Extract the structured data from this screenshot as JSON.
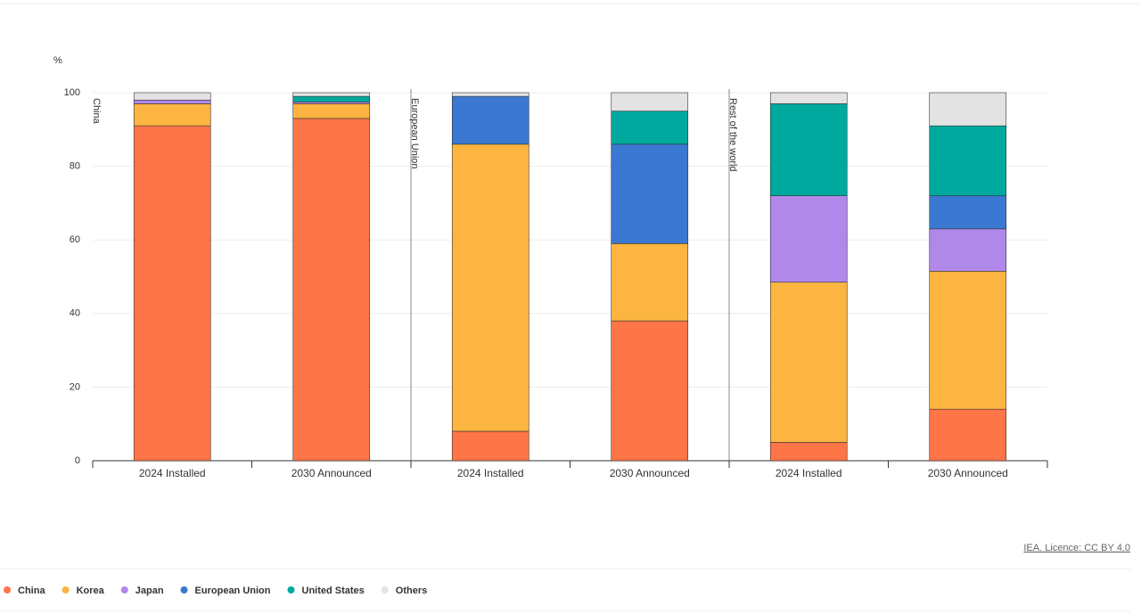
{
  "chart_data": {
    "type": "bar",
    "stacked": true,
    "y_label": "%",
    "groups": [
      "China",
      "European Union",
      "Rest of the world"
    ],
    "categories": [
      "2024 Installed",
      "2030 Announced",
      "2024 Installed",
      "2030 Announced",
      "2024 Installed",
      "2030 Announced"
    ],
    "series": [
      {
        "name": "China",
        "color": "#fe7547",
        "values": [
          91,
          93,
          8,
          38,
          5,
          14
        ]
      },
      {
        "name": "Korea",
        "color": "#fcb540",
        "values": [
          6,
          4,
          78,
          21,
          43.5,
          37.5
        ]
      },
      {
        "name": "Japan",
        "color": "#b088ea",
        "values": [
          1,
          0.5,
          0,
          0,
          23.5,
          11.5
        ]
      },
      {
        "name": "European Union",
        "color": "#3b78d1",
        "values": [
          0,
          0,
          13,
          27,
          0,
          9
        ]
      },
      {
        "name": "United States",
        "color": "#00a99d",
        "values": [
          0,
          1.5,
          0,
          9,
          25,
          19
        ]
      },
      {
        "name": "Others",
        "color": "#e3e3e3",
        "values": [
          2,
          1,
          1,
          5,
          3,
          9
        ]
      }
    ],
    "ylim": [
      0,
      100
    ],
    "yticks": [
      0,
      20,
      40,
      60,
      80,
      100
    ],
    "grid": true,
    "source": "IEA. Licence: CC BY 4.0"
  }
}
